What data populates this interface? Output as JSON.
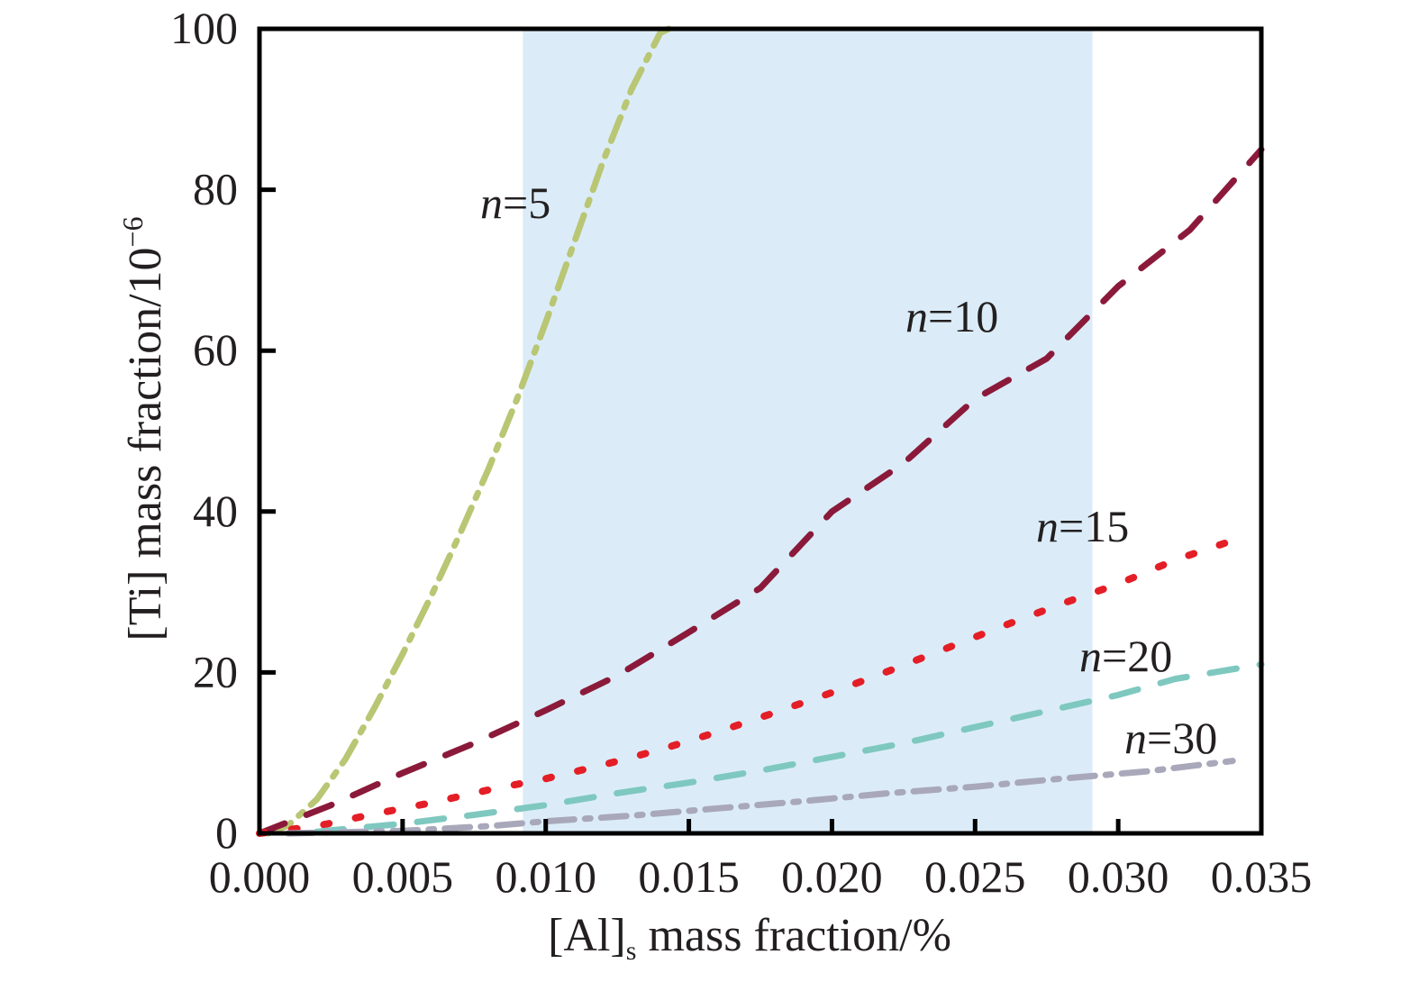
{
  "chart_data": {
    "type": "line",
    "xlabel": {
      "prefix": "[Al]",
      "subscript": "s",
      "suffix": " mass fraction/%"
    },
    "ylabel": {
      "prefix": "[Ti] mass fraction/10",
      "superscript": "−6"
    },
    "xlim": [
      0,
      0.035
    ],
    "ylim": [
      0,
      100
    ],
    "xticks": [
      "0.000",
      "0.005",
      "0.010",
      "0.015",
      "0.020",
      "0.025",
      "0.030",
      "0.035"
    ],
    "yticks": [
      "0",
      "20",
      "40",
      "60",
      "80",
      "100"
    ],
    "grid": false,
    "highlight_band": {
      "x_from": 0.0092,
      "x_to": 0.0291,
      "color": "#dbecf8"
    },
    "series": [
      {
        "name": "n=5",
        "label_n": "n",
        "label_rest": "=5",
        "color": "#b9c673",
        "style": "dashdot",
        "x": [
          0.0003,
          0.001,
          0.002,
          0.003,
          0.004,
          0.005,
          0.006,
          0.007,
          0.008,
          0.009,
          0.01,
          0.011,
          0.012,
          0.013,
          0.014,
          0.0143
        ],
        "y": [
          0,
          1,
          4.2,
          9.2,
          15.5,
          22.3,
          29.5,
          37.2,
          45.3,
          54,
          63.5,
          73.5,
          83.5,
          92.5,
          99.5,
          100
        ]
      },
      {
        "name": "n=10",
        "label_n": "n",
        "label_rest": "=10",
        "color": "#8b1a3a",
        "style": "dashed",
        "x": [
          0,
          0.0025,
          0.005,
          0.0075,
          0.01,
          0.0125,
          0.015,
          0.0175,
          0.02,
          0.0225,
          0.025,
          0.0275,
          0.03,
          0.0325,
          0.035
        ],
        "y": [
          0,
          3.5,
          7.5,
          11.2,
          15.3,
          19.6,
          25,
          30.5,
          40,
          46,
          54,
          59,
          68,
          75,
          85
        ]
      },
      {
        "name": "n=15",
        "label_n": "n",
        "label_rest": "=15",
        "color": "#e41e26",
        "style": "dotted",
        "x": [
          0,
          0.002,
          0.004,
          0.006,
          0.008,
          0.01,
          0.012,
          0.014,
          0.016,
          0.018,
          0.02,
          0.022,
          0.024,
          0.026,
          0.028,
          0.03,
          0.032,
          0.0345
        ],
        "y": [
          0,
          0.9,
          2.4,
          3.8,
          5.4,
          6.8,
          8.5,
          10.4,
          12.6,
          15,
          17.5,
          20.2,
          23,
          25.8,
          28.5,
          31,
          34,
          37
        ]
      },
      {
        "name": "n=20",
        "label_n": "n",
        "label_rest": "=20",
        "color": "#7ec8c0",
        "style": "dashed",
        "x": [
          0.002,
          0.005,
          0.0075,
          0.01,
          0.0125,
          0.015,
          0.0175,
          0.02,
          0.0225,
          0.025,
          0.0275,
          0.03,
          0.032,
          0.035
        ],
        "y": [
          0.2,
          1.2,
          2.3,
          3.5,
          5,
          6.3,
          7.8,
          9.5,
          11.2,
          13.2,
          15.2,
          17.2,
          19.2,
          21
        ]
      },
      {
        "name": "n=30",
        "label_n": "n",
        "label_rest": "=30",
        "color": "#a9a8bb",
        "style": "dashdot",
        "x": [
          0.001,
          0.005,
          0.008,
          0.01,
          0.013,
          0.016,
          0.019,
          0.022,
          0.025,
          0.028,
          0.031,
          0.034
        ],
        "y": [
          0,
          0.3,
          0.9,
          1.5,
          2.2,
          3.1,
          4,
          5,
          5.8,
          6.8,
          7.7,
          9
        ]
      }
    ]
  }
}
